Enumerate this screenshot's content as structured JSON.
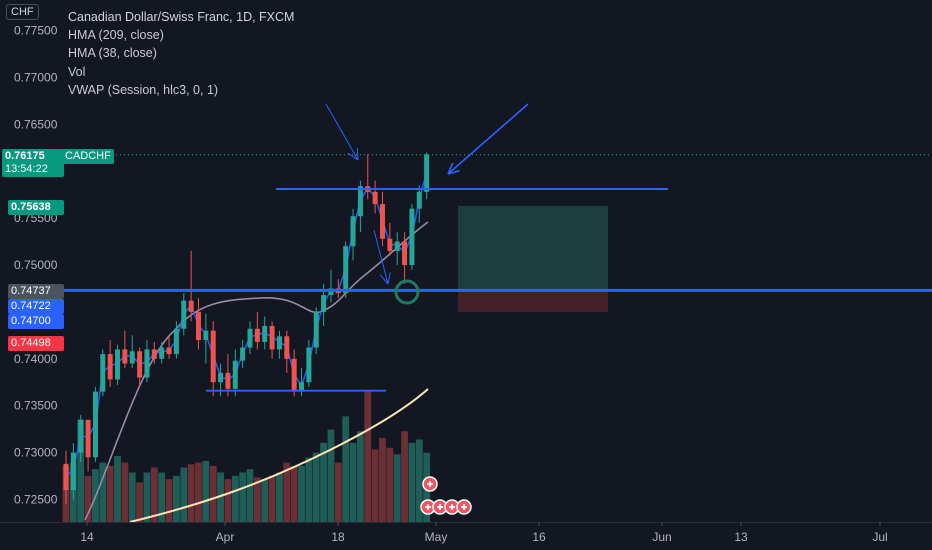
{
  "currency_button": "CHF",
  "legend": {
    "title": "Canadian Dollar/Swiss Franc, 1D, FXCM",
    "indicators": [
      "HMA (209, close)",
      "HMA (38, close)",
      "Vol",
      "VWAP (Session, hlc3, 0, 1)"
    ]
  },
  "symbol_label": "CADCHF",
  "price_badges": [
    {
      "value": "0.76175",
      "sub": "13:54:22",
      "color": "#089981"
    },
    {
      "value": "0.75638",
      "color": "#089981"
    },
    {
      "value": "0.74737",
      "color": "#4c525e"
    },
    {
      "value": "0.74722",
      "color": "#2962ff"
    },
    {
      "value": "0.74700",
      "color": "#2962ff"
    },
    {
      "value": "0.74498",
      "color": "#f23645"
    }
  ],
  "colors": {
    "up": "#26a69a",
    "down": "#ef5350",
    "level_line": "#2962ff",
    "background": "#131722"
  },
  "chart_data": {
    "type": "candlestick",
    "timeframe": "1D",
    "ylim": [
      0.7223,
      0.779
    ],
    "y_ticks": [
      "0.72500",
      "0.73000",
      "0.73500",
      "0.74000",
      "0.74500",
      "0.75000",
      "0.75500",
      "0.76500",
      "0.77000",
      "0.77500"
    ],
    "x_ticks": [
      "14",
      "Apr",
      "18",
      "May",
      "16",
      "Jun",
      "13",
      "Jul"
    ],
    "candles": [
      [
        0.7288,
        0.7302,
        0.7245,
        0.726
      ],
      [
        0.726,
        0.731,
        0.725,
        0.73
      ],
      [
        0.73,
        0.734,
        0.729,
        0.7335
      ],
      [
        0.7335,
        0.733,
        0.728,
        0.7295
      ],
      [
        0.7295,
        0.737,
        0.729,
        0.7365
      ],
      [
        0.7365,
        0.741,
        0.736,
        0.7405
      ],
      [
        0.7405,
        0.742,
        0.737,
        0.7378
      ],
      [
        0.7378,
        0.7415,
        0.7372,
        0.741
      ],
      [
        0.741,
        0.743,
        0.739,
        0.7395
      ],
      [
        0.7395,
        0.7425,
        0.739,
        0.7408
      ],
      [
        0.7408,
        0.7412,
        0.737,
        0.738
      ],
      [
        0.738,
        0.742,
        0.7375,
        0.741
      ],
      [
        0.741,
        0.7418,
        0.7395,
        0.74
      ],
      [
        0.74,
        0.7418,
        0.7395,
        0.7412
      ],
      [
        0.7412,
        0.7425,
        0.74,
        0.7405
      ],
      [
        0.7405,
        0.744,
        0.74,
        0.7432
      ],
      [
        0.7432,
        0.747,
        0.7425,
        0.7462
      ],
      [
        0.7462,
        0.7515,
        0.744,
        0.745
      ],
      [
        0.745,
        0.7465,
        0.741,
        0.742
      ],
      [
        0.742,
        0.7448,
        0.7395,
        0.743
      ],
      [
        0.743,
        0.744,
        0.736,
        0.7375
      ],
      [
        0.7375,
        0.7395,
        0.736,
        0.7385
      ],
      [
        0.7385,
        0.7405,
        0.736,
        0.7368
      ],
      [
        0.7368,
        0.741,
        0.736,
        0.7398
      ],
      [
        0.7398,
        0.742,
        0.739,
        0.7412
      ],
      [
        0.7412,
        0.744,
        0.7405,
        0.7432
      ],
      [
        0.7432,
        0.745,
        0.741,
        0.7418
      ],
      [
        0.7418,
        0.7445,
        0.741,
        0.7435
      ],
      [
        0.7435,
        0.744,
        0.74,
        0.741
      ],
      [
        0.741,
        0.743,
        0.74,
        0.7424
      ],
      [
        0.7424,
        0.743,
        0.7385,
        0.74
      ],
      [
        0.74,
        0.741,
        0.736,
        0.7365
      ],
      [
        0.7365,
        0.739,
        0.736,
        0.7375
      ],
      [
        0.7375,
        0.742,
        0.737,
        0.7412
      ],
      [
        0.7412,
        0.7455,
        0.7405,
        0.745
      ],
      [
        0.745,
        0.748,
        0.7435,
        0.7468
      ],
      [
        0.7468,
        0.7495,
        0.746,
        0.7475
      ],
      [
        0.7475,
        0.7485,
        0.7465,
        0.747
      ],
      [
        0.747,
        0.7525,
        0.7465,
        0.752
      ],
      [
        0.752,
        0.756,
        0.7505,
        0.7552
      ],
      [
        0.7552,
        0.759,
        0.7535,
        0.7584
      ],
      [
        0.7584,
        0.7618,
        0.757,
        0.7578
      ],
      [
        0.7578,
        0.759,
        0.7555,
        0.7565
      ],
      [
        0.7565,
        0.7578,
        0.752,
        0.7528
      ],
      [
        0.7528,
        0.7545,
        0.751,
        0.7515
      ],
      [
        0.7515,
        0.7535,
        0.75,
        0.7525
      ],
      [
        0.7525,
        0.7535,
        0.748,
        0.75
      ],
      [
        0.75,
        0.7565,
        0.7495,
        0.756
      ],
      [
        0.756,
        0.7585,
        0.7545,
        0.7578
      ],
      [
        0.7578,
        0.762,
        0.757,
        0.7618
      ]
    ],
    "volume": [
      0.34,
      0.36,
      0.62,
      0.28,
      0.32,
      0.36,
      0.34,
      0.4,
      0.36,
      0.3,
      0.24,
      0.3,
      0.33,
      0.3,
      0.26,
      0.28,
      0.33,
      0.35,
      0.36,
      0.37,
      0.34,
      0.3,
      0.26,
      0.28,
      0.3,
      0.32,
      0.27,
      0.26,
      0.28,
      0.3,
      0.36,
      0.34,
      0.34,
      0.39,
      0.42,
      0.48,
      0.56,
      0.36,
      0.64,
      0.48,
      0.55,
      0.8,
      0.44,
      0.51,
      0.45,
      0.41,
      0.55,
      0.48,
      0.5,
      0.42
    ],
    "horizontal_levels": [
      0.7473,
      0.7581,
      0.7366
    ],
    "grid": false
  }
}
